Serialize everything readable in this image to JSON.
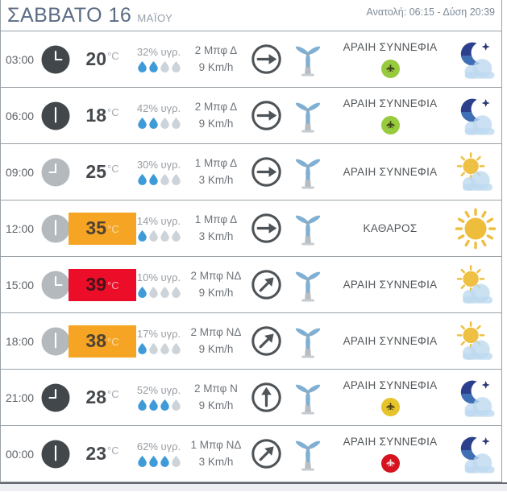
{
  "header": {
    "title_day": "ΣΑΒΒΑΤΟ 16",
    "title_month": "ΜΑΪΟΥ",
    "sun_info": "Ανατολή: 06:15 - Δύση 20:39"
  },
  "colors": {
    "accent_orange": "#F5A423",
    "accent_red": "#EC0E28",
    "drop_active": "#3F9BD8",
    "drop_inactive": "#CCD3D9",
    "mosquito_green": "#97CB3D",
    "mosquito_yellow": "#E6C32B",
    "mosquito_red": "#D5121E",
    "title_blue": "#5A6C85"
  },
  "icons": {
    "clock": "clock-icon",
    "humidity": "water-drop-icon",
    "wind_direction": "circled-arrow-icon",
    "turbine": "wind-turbine-icon",
    "mosquito": "mosquito-icon",
    "night_cloud": "moon-cloud-icon",
    "day_cloud": "sun-cloud-icon",
    "sun": "sun-icon"
  },
  "rows": [
    {
      "time": "03:00",
      "period": "night",
      "hour_angle": 90,
      "temp_value": "20",
      "temp_unit": "°C",
      "temp_highlight": "none",
      "humidity": "32% υγρ.",
      "drops_active": 2,
      "drops_total": 4,
      "wind_force": "2 Μπφ Δ",
      "wind_speed": "9 Km/h",
      "wind_arrow_deg": 0,
      "description": "ΑΡΑΙΗ ΣΥΝΝΕΦΙΑ",
      "mosquito": "green",
      "weather_icon": "night-cloud"
    },
    {
      "time": "06:00",
      "period": "night",
      "hour_angle": 180,
      "temp_value": "18",
      "temp_unit": "°C",
      "temp_highlight": "none",
      "humidity": "42% υγρ.",
      "drops_active": 2,
      "drops_total": 4,
      "wind_force": "2 Μπφ Δ",
      "wind_speed": "9 Km/h",
      "wind_arrow_deg": 0,
      "description": "ΑΡΑΙΗ ΣΥΝΝΕΦΙΑ",
      "mosquito": "green",
      "weather_icon": "night-cloud"
    },
    {
      "time": "09:00",
      "period": "day",
      "hour_angle": 270,
      "temp_value": "25",
      "temp_unit": "°C",
      "temp_highlight": "none",
      "humidity": "30% υγρ.",
      "drops_active": 2,
      "drops_total": 4,
      "wind_force": "1 Μπφ Δ",
      "wind_speed": "3 Km/h",
      "wind_arrow_deg": 0,
      "description": "ΑΡΑΙΗ ΣΥΝΝΕΦΙΑ",
      "mosquito": null,
      "weather_icon": "day-cloud"
    },
    {
      "time": "12:00",
      "period": "day",
      "hour_angle": 180,
      "temp_value": "35",
      "temp_unit": "°C",
      "temp_highlight": "orange",
      "humidity": "14% υγρ.",
      "drops_active": 1,
      "drops_total": 4,
      "wind_force": "1 Μπφ Δ",
      "wind_speed": "3 Km/h",
      "wind_arrow_deg": 0,
      "description": "ΚΑΘΑΡΟΣ",
      "mosquito": null,
      "weather_icon": "sun"
    },
    {
      "time": "15:00",
      "period": "day",
      "hour_angle": 90,
      "temp_value": "39",
      "temp_unit": "°C",
      "temp_highlight": "red",
      "humidity": "10% υγρ.",
      "drops_active": 1,
      "drops_total": 4,
      "wind_force": "2 Μπφ ΝΔ",
      "wind_speed": "9 Km/h",
      "wind_arrow_deg": -45,
      "description": "ΑΡΑΙΗ ΣΥΝΝΕΦΙΑ",
      "mosquito": null,
      "weather_icon": "day-cloud"
    },
    {
      "time": "18:00",
      "period": "day",
      "hour_angle": 180,
      "temp_value": "38",
      "temp_unit": "°C",
      "temp_highlight": "orange",
      "humidity": "17% υγρ.",
      "drops_active": 1,
      "drops_total": 4,
      "wind_force": "2 Μπφ ΝΔ",
      "wind_speed": "9 Km/h",
      "wind_arrow_deg": -45,
      "description": "ΑΡΑΙΗ ΣΥΝΝΕΦΙΑ",
      "mosquito": null,
      "weather_icon": "day-cloud"
    },
    {
      "time": "21:00",
      "period": "night",
      "hour_angle": 270,
      "temp_value": "28",
      "temp_unit": "°C",
      "temp_highlight": "none",
      "humidity": "52% υγρ.",
      "drops_active": 3,
      "drops_total": 4,
      "wind_force": "2 Μπφ Ν",
      "wind_speed": "9 Km/h",
      "wind_arrow_deg": -90,
      "description": "ΑΡΑΙΗ ΣΥΝΝΕΦΙΑ",
      "mosquito": "yellow",
      "weather_icon": "night-cloud"
    },
    {
      "time": "00:00",
      "period": "night",
      "hour_angle": 180,
      "temp_value": "23",
      "temp_unit": "°C",
      "temp_highlight": "none",
      "humidity": "62% υγρ.",
      "drops_active": 3,
      "drops_total": 4,
      "wind_force": "1 Μπφ ΝΔ",
      "wind_speed": "3 Km/h",
      "wind_arrow_deg": -45,
      "description": "ΑΡΑΙΗ ΣΥΝΝΕΦΙΑ",
      "mosquito": "red",
      "weather_icon": "night-cloud"
    }
  ]
}
